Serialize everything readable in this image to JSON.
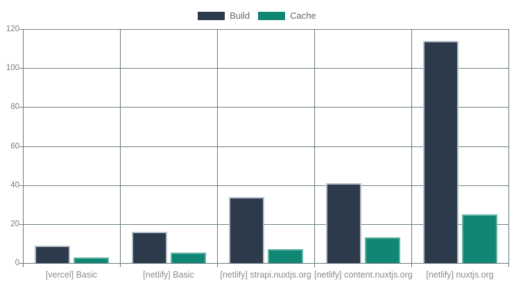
{
  "legend": {
    "items": [
      {
        "label": "Build",
        "color": "#2d3a4b"
      },
      {
        "label": "Cache",
        "color": "#108775"
      }
    ]
  },
  "chart_data": {
    "type": "bar",
    "title": "",
    "xlabel": "",
    "ylabel": "",
    "categories": [
      "[vercel] Basic",
      "[netlify] Basic",
      "[netlify] strapi.nuxtjs.org",
      "[netlify] content.nuxtjs.org",
      "[netlify] nuxtjs.org"
    ],
    "series": [
      {
        "name": "Build",
        "color": "#2d3a4b",
        "border_color": "#b6bfca",
        "values": [
          9,
          16,
          34,
          41,
          114
        ]
      },
      {
        "name": "Cache",
        "color": "#108775",
        "border_color": "#64b2a2",
        "values": [
          3,
          5.5,
          7,
          13,
          25
        ]
      }
    ],
    "ylim": [
      0,
      120
    ],
    "yticks": [
      0,
      20,
      40,
      60,
      80,
      100,
      120
    ],
    "grid": true,
    "legend_position": "top"
  },
  "axis": {
    "line_color": "#65797b",
    "grid_color": "#6d8183",
    "tick_label_color": "#7c7c7c",
    "category_label_color": "#8b8b8b"
  }
}
